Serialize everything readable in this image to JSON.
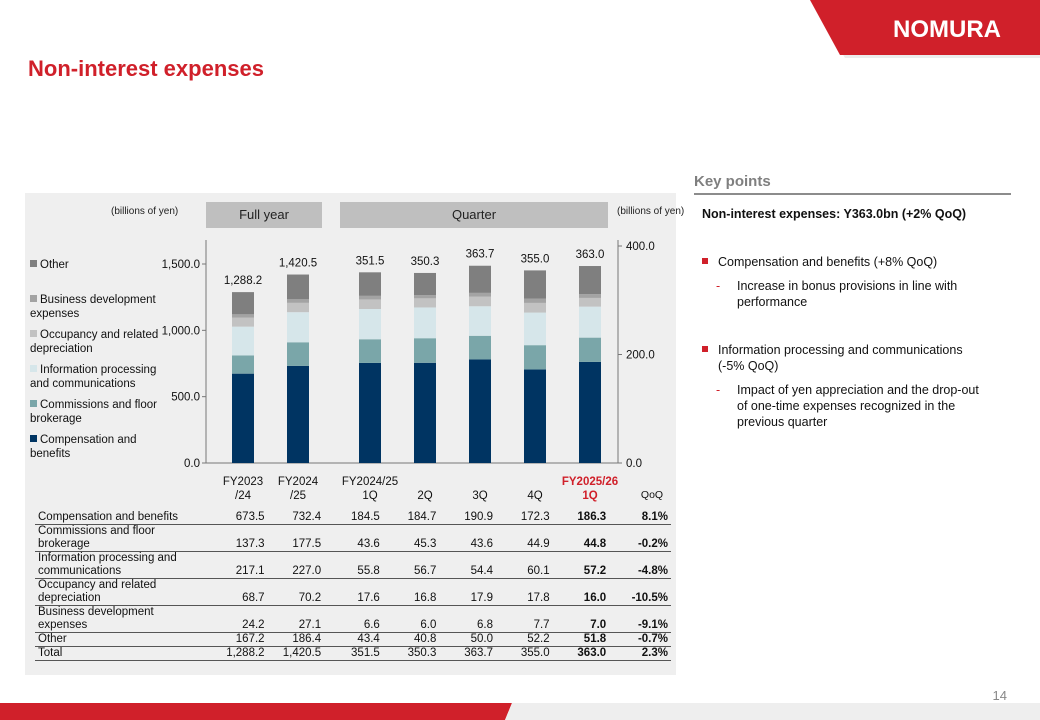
{
  "header": {
    "title": "Non-interest expenses",
    "logo_text": "NOMURA",
    "accent": "#d0202a"
  },
  "chart_panel": {
    "left_unit": "(billions of yen)",
    "right_unit": "(billions of yen)",
    "full_year_label": "Full year",
    "quarter_label": "Quarter",
    "qoq_label": "QoQ"
  },
  "chart_data": {
    "type": "stacked-bar",
    "categories": [
      {
        "line1": "FY2023",
        "line2": "/24",
        "highlight": false
      },
      {
        "line1": "FY2024",
        "line2": "/25",
        "highlight": false
      },
      {
        "line1": "FY2024/25",
        "line2": "1Q",
        "highlight": false
      },
      {
        "line1": "",
        "line2": "2Q",
        "highlight": false
      },
      {
        "line1": "",
        "line2": "3Q",
        "highlight": false
      },
      {
        "line1": "",
        "line2": "4Q",
        "highlight": false
      },
      {
        "line1": "FY2025/26",
        "line2": "1Q",
        "highlight": true
      }
    ],
    "axis_group": [
      "left",
      "left",
      "right",
      "right",
      "right",
      "right",
      "right"
    ],
    "left_axis": {
      "min": 0,
      "max": 1500,
      "ticks": [
        "0.0",
        "500.0",
        "1,000.0",
        "1,500.0"
      ],
      "tick_values": [
        0,
        500,
        1000,
        1500
      ]
    },
    "right_axis": {
      "min": 0,
      "max": 400,
      "ticks": [
        "0.0",
        "200.0",
        "400.0"
      ],
      "tick_values": [
        0,
        200,
        400
      ]
    },
    "series": [
      {
        "name": "Compensation and benefits",
        "color": "#003462",
        "values": [
          673.5,
          732.4,
          184.5,
          184.7,
          190.9,
          172.3,
          186.3
        ]
      },
      {
        "name": "Commissions and floor brokerage",
        "color": "#7aa6a9",
        "values": [
          137.3,
          177.5,
          43.6,
          45.3,
          43.6,
          44.9,
          44.8
        ]
      },
      {
        "name": "Information processing and communications",
        "color": "#d6e6ea",
        "values": [
          217.1,
          227.0,
          55.8,
          56.7,
          54.4,
          60.1,
          57.2
        ]
      },
      {
        "name": "Occupancy and related depreciation",
        "color": "#c2c2c2",
        "values": [
          68.7,
          70.2,
          17.6,
          16.8,
          17.9,
          17.8,
          16.0
        ]
      },
      {
        "name": "Business development expenses",
        "color": "#a3a3a3",
        "values": [
          24.2,
          27.1,
          6.6,
          6.0,
          6.8,
          7.7,
          7.0
        ]
      },
      {
        "name": "Other",
        "color": "#7f7f7f",
        "values": [
          167.2,
          186.4,
          43.4,
          40.8,
          50.0,
          52.2,
          51.8
        ]
      }
    ],
    "totals": [
      "1,288.2",
      "1,420.5",
      "351.5",
      "350.3",
      "363.7",
      "355.0",
      "363.0"
    ],
    "legend": [
      {
        "lines": [
          "Other"
        ],
        "color": "#7f7f7f"
      },
      {
        "lines": [
          "Business development",
          "expenses"
        ],
        "color": "#a3a3a3"
      },
      {
        "lines": [
          "Occupancy and related",
          "depreciation"
        ],
        "color": "#c2c2c2"
      },
      {
        "lines": [
          "Information processing",
          "and communications"
        ],
        "color": "#d6e6ea"
      },
      {
        "lines": [
          "Commissions and floor",
          "brokerage"
        ],
        "color": "#7aa6a9"
      },
      {
        "lines": [
          "Compensation and",
          "benefits"
        ],
        "color": "#003462"
      }
    ]
  },
  "table": {
    "rows": [
      {
        "label": "Compensation and benefits",
        "tall": false,
        "cells": [
          "673.5",
          "732.4",
          "184.5",
          "184.7",
          "190.9",
          "172.3",
          "186.3",
          "8.1%"
        ]
      },
      {
        "label": "Commissions and floor brokerage",
        "tall": true,
        "cells": [
          "137.3",
          "177.5",
          "43.6",
          "45.3",
          "43.6",
          "44.9",
          "44.8",
          "-0.2%"
        ]
      },
      {
        "label": "Information processing and communications",
        "tall": true,
        "cells": [
          "217.1",
          "227.0",
          "55.8",
          "56.7",
          "54.4",
          "60.1",
          "57.2",
          "-4.8%"
        ]
      },
      {
        "label": "Occupancy and related depreciation",
        "tall": true,
        "cells": [
          "68.7",
          "70.2",
          "17.6",
          "16.8",
          "17.9",
          "17.8",
          "16.0",
          "-10.5%"
        ]
      },
      {
        "label": "Business development expenses",
        "tall": true,
        "cells": [
          "24.2",
          "27.1",
          "6.6",
          "6.0",
          "6.8",
          "7.7",
          "7.0",
          "-9.1%"
        ]
      },
      {
        "label": "Other",
        "tall": false,
        "cells": [
          "167.2",
          "186.4",
          "43.4",
          "40.8",
          "50.0",
          "52.2",
          "51.8",
          "-0.7%"
        ]
      },
      {
        "label": "Total",
        "tall": false,
        "cells": [
          "1,288.2",
          "1,420.5",
          "351.5",
          "350.3",
          "363.7",
          "355.0",
          "363.0",
          "2.3%"
        ]
      }
    ]
  },
  "key_points": {
    "title": "Key points",
    "headline": "Non-interest expenses: Y363.0bn (+2% QoQ)",
    "bullet1": "Compensation and benefits (+8% QoQ)",
    "bullet1_sub": "Increase in bonus provisions in line with performance",
    "bullet2_line1": "Information processing and communications",
    "bullet2_line2": "(-5% QoQ)",
    "bullet2_sub": "Impact of yen appreciation and the drop-out of one-time expenses recognized in the previous quarter",
    "dash": "-"
  },
  "footer": {
    "page_number": "14"
  }
}
